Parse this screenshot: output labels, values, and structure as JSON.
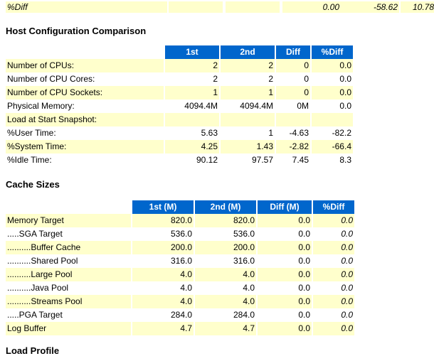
{
  "top_row": {
    "label": "%Diff",
    "values": [
      "0.00",
      "-58.62",
      "10.78"
    ]
  },
  "host_config": {
    "title": "Host Configuration Comparison",
    "headers": [
      "1st",
      "2nd",
      "Diff",
      "%Diff"
    ],
    "rows": [
      {
        "label": "Number of CPUs:",
        "v": [
          "2",
          "2",
          "0",
          "0.0"
        ]
      },
      {
        "label": "Number of CPU Cores:",
        "v": [
          "2",
          "2",
          "0",
          "0.0"
        ]
      },
      {
        "label": "Number of CPU Sockets:",
        "v": [
          "1",
          "1",
          "0",
          "0.0"
        ]
      },
      {
        "label": "Physical Memory:",
        "v": [
          "4094.4M",
          "4094.4M",
          "0M",
          "0.0"
        ]
      },
      {
        "label": "Load at Start Snapshot:",
        "v": [
          "",
          "",
          "",
          ""
        ]
      },
      {
        "label": "%User Time:",
        "v": [
          "5.63",
          "1",
          "-4.63",
          "-82.2"
        ]
      },
      {
        "label": "%System Time:",
        "v": [
          "4.25",
          "1.43",
          "-2.82",
          "-66.4"
        ]
      },
      {
        "label": "%Idle Time:",
        "v": [
          "90.12",
          "97.57",
          "7.45",
          "8.3"
        ]
      }
    ]
  },
  "cache_sizes": {
    "title": "Cache Sizes",
    "headers": [
      "1st (M)",
      "2nd (M)",
      "Diff (M)",
      "%Diff"
    ],
    "rows": [
      {
        "label": "Memory Target",
        "v": [
          "820.0",
          "820.0",
          "0.0",
          "0.0"
        ]
      },
      {
        "label": ".....SGA Target",
        "v": [
          "536.0",
          "536.0",
          "0.0",
          "0.0"
        ]
      },
      {
        "label": "..........Buffer Cache",
        "v": [
          "200.0",
          "200.0",
          "0.0",
          "0.0"
        ]
      },
      {
        "label": "..........Shared Pool",
        "v": [
          "316.0",
          "316.0",
          "0.0",
          "0.0"
        ]
      },
      {
        "label": "..........Large Pool",
        "v": [
          "4.0",
          "4.0",
          "0.0",
          "0.0"
        ]
      },
      {
        "label": "..........Java Pool",
        "v": [
          "4.0",
          "4.0",
          "0.0",
          "0.0"
        ]
      },
      {
        "label": "..........Streams Pool",
        "v": [
          "4.0",
          "4.0",
          "0.0",
          "0.0"
        ]
      },
      {
        "label": ".....PGA Target",
        "v": [
          "284.0",
          "284.0",
          "0.0",
          "0.0"
        ]
      },
      {
        "label": "Log Buffer",
        "v": [
          "4.7",
          "4.7",
          "0.0",
          "0.0"
        ]
      }
    ]
  },
  "load_profile": {
    "title": "Load Profile"
  }
}
